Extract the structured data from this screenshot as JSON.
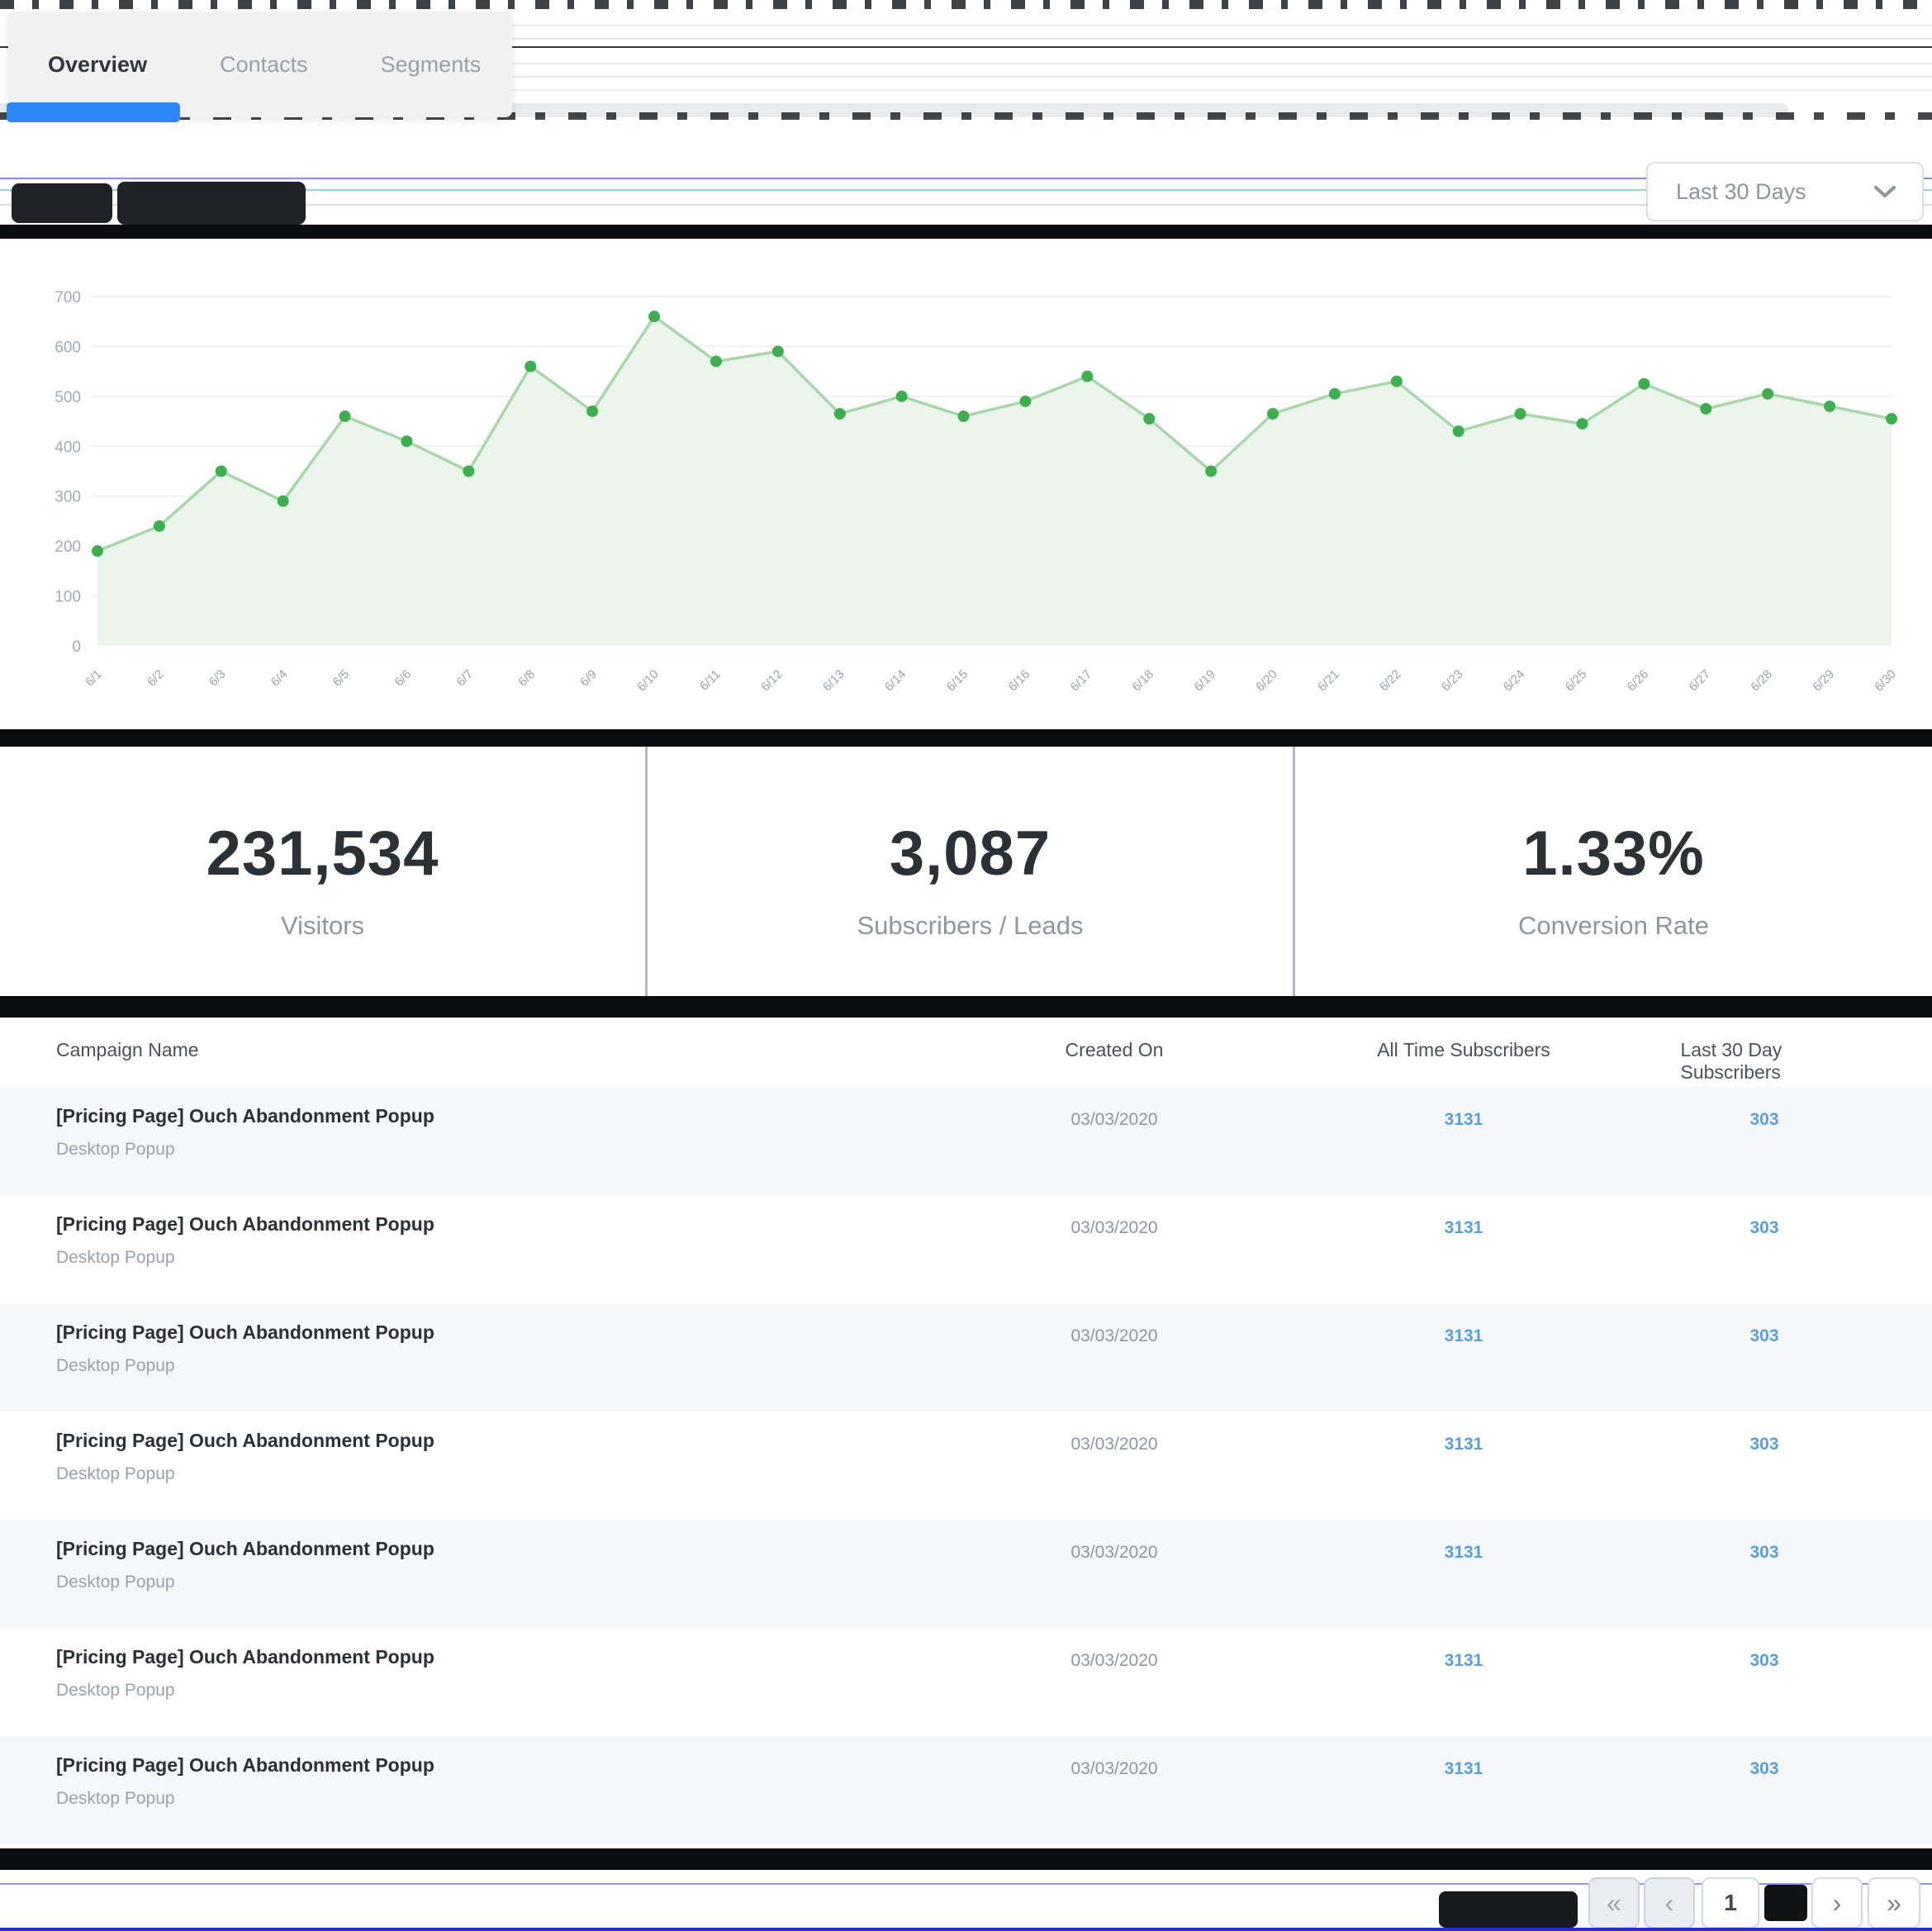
{
  "tabs": {
    "items": [
      {
        "label": "Overview",
        "active": true
      },
      {
        "label": "Contacts",
        "active": false
      },
      {
        "label": "Segments",
        "active": false
      }
    ]
  },
  "controls": {
    "date_range": "Last 30 Days",
    "dropdown_icon": "chevron-down-icon"
  },
  "chart_data": {
    "type": "area",
    "x": [
      "6/1",
      "6/2",
      "6/3",
      "6/4",
      "6/5",
      "6/6",
      "6/7",
      "6/8",
      "6/9",
      "6/10",
      "6/11",
      "6/12",
      "6/13",
      "6/14",
      "6/15",
      "6/16",
      "6/17",
      "6/18",
      "6/19",
      "6/20",
      "6/21",
      "6/22",
      "6/23",
      "6/24",
      "6/25",
      "6/26",
      "6/27",
      "6/28",
      "6/29",
      "6/30"
    ],
    "values": [
      190,
      240,
      350,
      290,
      460,
      410,
      350,
      560,
      470,
      660,
      570,
      590,
      465,
      500,
      460,
      490,
      540,
      455,
      350,
      465,
      505,
      530,
      430,
      465,
      445,
      525,
      475,
      505,
      480,
      455
    ],
    "ylim": [
      0,
      700
    ],
    "yticks": [
      0,
      100,
      200,
      300,
      400,
      500,
      600,
      700
    ],
    "grid": true,
    "legend": "none",
    "line_color": "#a9d7ab",
    "point_color": "#3fae4e",
    "fill_color": "#e9f4ea",
    "tick_color": "#a3abb3"
  },
  "stats": [
    {
      "value": "231,534",
      "label": "Visitors"
    },
    {
      "value": "3,087",
      "label": "Subscribers / Leads"
    },
    {
      "value": "1.33%",
      "label": "Conversion Rate"
    }
  ],
  "table": {
    "columns": [
      "Campaign Name",
      "Created On",
      "All Time Subscribers",
      "Last 30 Day Subscribers"
    ],
    "rows": [
      {
        "name": "[Pricing Page] Ouch Abandonment Popup",
        "type": "Desktop Popup",
        "created_on": "03/03/2020",
        "all_time_subscribers": "3131",
        "last_30_day_subscribers": "303"
      },
      {
        "name": "[Pricing Page] Ouch Abandonment Popup",
        "type": "Desktop Popup",
        "created_on": "03/03/2020",
        "all_time_subscribers": "3131",
        "last_30_day_subscribers": "303"
      },
      {
        "name": "[Pricing Page] Ouch Abandonment Popup",
        "type": "Desktop Popup",
        "created_on": "03/03/2020",
        "all_time_subscribers": "3131",
        "last_30_day_subscribers": "303"
      },
      {
        "name": "[Pricing Page] Ouch Abandonment Popup",
        "type": "Desktop Popup",
        "created_on": "03/03/2020",
        "all_time_subscribers": "3131",
        "last_30_day_subscribers": "303"
      },
      {
        "name": "[Pricing Page] Ouch Abandonment Popup",
        "type": "Desktop Popup",
        "created_on": "03/03/2020",
        "all_time_subscribers": "3131",
        "last_30_day_subscribers": "303"
      },
      {
        "name": "[Pricing Page] Ouch Abandonment Popup",
        "type": "Desktop Popup",
        "created_on": "03/03/2020",
        "all_time_subscribers": "3131",
        "last_30_day_subscribers": "303"
      },
      {
        "name": "[Pricing Page] Ouch Abandonment Popup",
        "type": "Desktop Popup",
        "created_on": "03/03/2020",
        "all_time_subscribers": "3131",
        "last_30_day_subscribers": "303"
      }
    ]
  },
  "pagination": {
    "current_page": "1",
    "first_icon": "«",
    "prev_icon": "‹",
    "next_icon": "›",
    "last_icon": "»"
  }
}
